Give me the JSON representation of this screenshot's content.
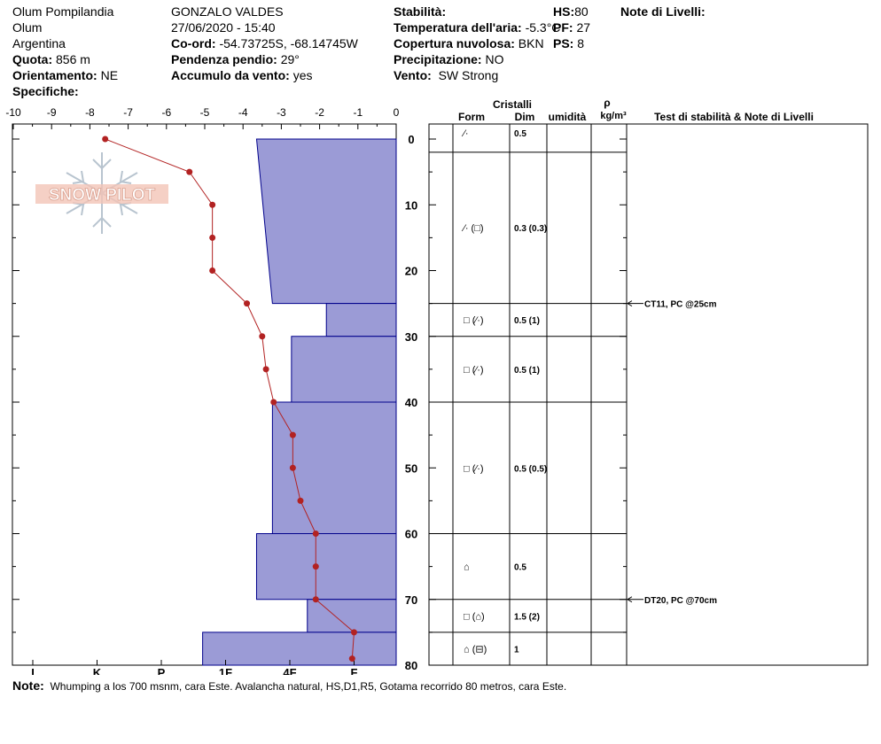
{
  "header": {
    "location": "Olum Pompilandia",
    "site": "Olum",
    "country": "Argentina",
    "elevation_label": "Quota:",
    "elevation_value": "856 m",
    "aspect_label": "Orientamento:",
    "aspect_value": "NE",
    "specifics_label": "Specifiche:",
    "observer": "GONZALO VALDES",
    "datetime": "27/06/2020 - 15:40",
    "coords_label": "Co-ord:",
    "coords_value": "-54.73725S, -68.14745W",
    "slope_label": "Pendenza pendio:",
    "slope_value": "29°",
    "wind_loading_label": "Accumulo da vento:",
    "wind_loading_value": "yes",
    "stability_label": "Stabilità:",
    "air_temp_label": "Temperatura dell'aria:",
    "air_temp_value": "-5.3°C",
    "cloud_label": "Copertura nuvolosa:",
    "cloud_value": "BKN",
    "precip_label": "Precipitazione:",
    "precip_value": "NO",
    "wind_label": "Vento:",
    "wind_value": "SW Strong",
    "hs_label": "HS:",
    "hs_value": "80",
    "pf_label": "PF:",
    "pf_value": "27",
    "ps_label": "PS:",
    "ps_value": "8",
    "layer_notes_label": "Note di Livelli:"
  },
  "watermark": "SNOW PILOT",
  "note": {
    "label": "Note:",
    "text": "Whumping a los 700 msnm, cara Este. Avalancha natural, HS,D1,R5, Gotama recorrido 80 metros, cara Este."
  },
  "table_headers": {
    "crystals": "Cristalli",
    "form": "Form",
    "size": "Dim",
    "moisture": "umidità",
    "rho": "ρ",
    "density_unit": "kg/m³",
    "tests": "Test di stabilità & Note di Livelli"
  },
  "colors": {
    "hardness_fill": "#9b9bd6",
    "hardness_stroke": "#00008b",
    "temp": "#b22222"
  },
  "chart_data": {
    "type": "area",
    "depth_range": [
      0,
      80
    ],
    "depth_ticks": [
      0,
      10,
      20,
      30,
      40,
      50,
      60,
      70,
      80
    ],
    "temp_range": [
      -10,
      0
    ],
    "temp_ticks": [
      "-10",
      "-9",
      "-8",
      "-7",
      "-6",
      "-5",
      "-4",
      "-3",
      "-2",
      "-1",
      "0"
    ],
    "hardness_ticks": [
      "I",
      "K",
      "P",
      "1F",
      "4F",
      "F"
    ],
    "hardness_profile": [
      {
        "top": 0,
        "bottom": 25,
        "hardness_top": 4.4,
        "hardness_bottom": 3.9
      },
      {
        "top": 25,
        "bottom": 30,
        "hardness": 2.2
      },
      {
        "top": 30,
        "bottom": 40,
        "hardness": 3.3
      },
      {
        "top": 40,
        "bottom": 60,
        "hardness": 3.9
      },
      {
        "top": 60,
        "bottom": 70,
        "hardness": 4.4
      },
      {
        "top": 70,
        "bottom": 75,
        "hardness": 2.8
      },
      {
        "top": 75,
        "bottom": 80,
        "hardness": 6.1
      }
    ],
    "temperature": [
      {
        "depth": 0,
        "temp": -7.6
      },
      {
        "depth": 5,
        "temp": -5.4
      },
      {
        "depth": 10,
        "temp": -4.8
      },
      {
        "depth": 15,
        "temp": -4.8
      },
      {
        "depth": 20,
        "temp": -4.8
      },
      {
        "depth": 25,
        "temp": -3.9
      },
      {
        "depth": 30,
        "temp": -3.5
      },
      {
        "depth": 35,
        "temp": -3.4
      },
      {
        "depth": 40,
        "temp": -3.2
      },
      {
        "depth": 45,
        "temp": -2.7
      },
      {
        "depth": 50,
        "temp": -2.7
      },
      {
        "depth": 55,
        "temp": -2.5
      },
      {
        "depth": 60,
        "temp": -2.1
      },
      {
        "depth": 65,
        "temp": -2.1
      },
      {
        "depth": 70,
        "temp": -2.1
      },
      {
        "depth": 75,
        "temp": -1.1
      },
      {
        "depth": 79,
        "temp": -1.15
      }
    ],
    "layers": [
      {
        "top": 0,
        "bottom": 2,
        "form": "⁄·",
        "size": "0.5"
      },
      {
        "top": 2,
        "bottom": 25,
        "form": "⁄· (□)",
        "size": "0.3 (0.3)"
      },
      {
        "top": 25,
        "bottom": 30,
        "form": "□ (⁄·)",
        "size": "0.5 (1)"
      },
      {
        "top": 30,
        "bottom": 40,
        "form": "□ (⁄·)",
        "size": "0.5 (1)"
      },
      {
        "top": 40,
        "bottom": 60,
        "form": "□ (⁄·)",
        "size": "0.5 (0.5)"
      },
      {
        "top": 60,
        "bottom": 70,
        "form": "⌂",
        "size": "0.5"
      },
      {
        "top": 70,
        "bottom": 75,
        "form": "□ (⌂)",
        "size": "1.5 (2)"
      },
      {
        "top": 75,
        "bottom": 80,
        "form": "⌂ (⊟)",
        "size": "1"
      }
    ],
    "tests": [
      {
        "depth": 25,
        "text": "CT11, PC @25cm"
      },
      {
        "depth": 70,
        "text": "DT20, PC @70cm"
      }
    ]
  }
}
